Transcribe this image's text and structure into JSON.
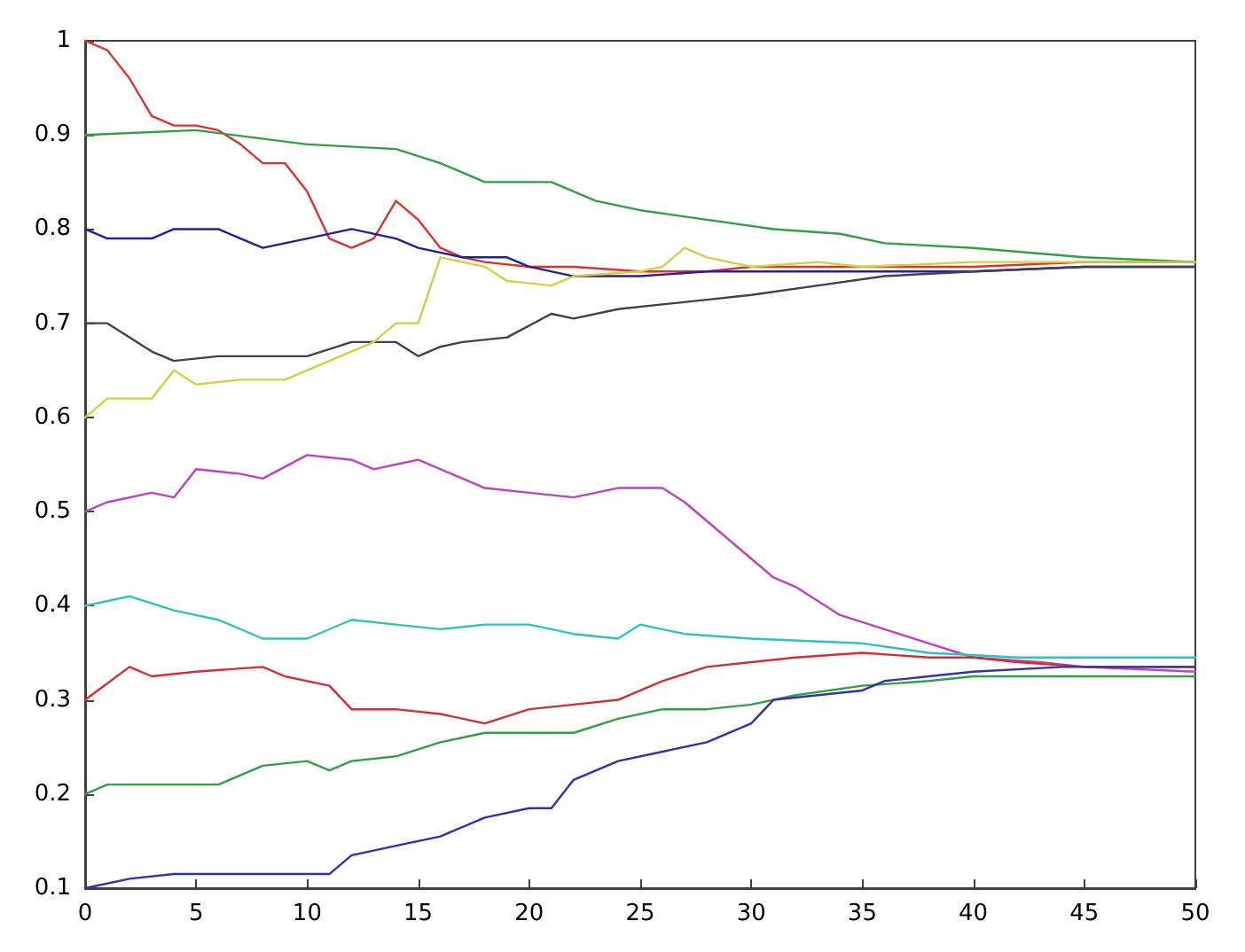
{
  "chart_data": {
    "type": "line",
    "xlim": [
      0,
      50
    ],
    "ylim": [
      0.1,
      1
    ],
    "xticks": [
      0,
      5,
      10,
      15,
      20,
      25,
      30,
      35,
      40,
      45,
      50
    ],
    "yticks": [
      0.1,
      0.2,
      0.3,
      0.4,
      0.5,
      0.6,
      0.7,
      0.8,
      0.9,
      1
    ],
    "grid": false,
    "marker": "none",
    "series": [
      {
        "color": "#e03030",
        "x": [
          0,
          1,
          2,
          3,
          4,
          5,
          6,
          7,
          8,
          9,
          10,
          11,
          12,
          13,
          14,
          15,
          16,
          17,
          18,
          20,
          22,
          25,
          28,
          30,
          35,
          40,
          45,
          50
        ],
        "values": [
          1.0,
          0.99,
          0.96,
          0.92,
          0.91,
          0.91,
          0.905,
          0.89,
          0.87,
          0.87,
          0.84,
          0.79,
          0.78,
          0.79,
          0.83,
          0.81,
          0.78,
          0.77,
          0.765,
          0.76,
          0.76,
          0.755,
          0.755,
          0.76,
          0.76,
          0.76,
          0.765,
          0.765
        ]
      },
      {
        "color": "#30a040",
        "x": [
          0,
          5,
          10,
          14,
          16,
          18,
          21,
          23,
          25,
          28,
          31,
          34,
          36,
          40,
          45,
          50
        ],
        "values": [
          0.9,
          0.905,
          0.89,
          0.885,
          0.87,
          0.85,
          0.85,
          0.83,
          0.82,
          0.81,
          0.8,
          0.795,
          0.785,
          0.78,
          0.77,
          0.765
        ]
      },
      {
        "color": "#2020a0",
        "x": [
          0,
          1,
          3,
          4,
          6,
          7,
          8,
          10,
          12,
          14,
          15,
          17,
          19,
          20,
          22,
          25,
          28,
          30,
          35,
          40,
          45,
          50
        ],
        "values": [
          0.8,
          0.79,
          0.79,
          0.8,
          0.8,
          0.79,
          0.78,
          0.79,
          0.8,
          0.79,
          0.78,
          0.77,
          0.77,
          0.76,
          0.75,
          0.75,
          0.755,
          0.755,
          0.755,
          0.755,
          0.76,
          0.76
        ]
      },
      {
        "color": "#404050",
        "x": [
          0,
          1,
          3,
          4,
          6,
          10,
          12,
          14,
          15,
          16,
          17,
          19,
          21,
          22,
          24,
          26,
          28,
          30,
          33,
          36,
          40,
          45,
          50
        ],
        "values": [
          0.7,
          0.7,
          0.67,
          0.66,
          0.665,
          0.665,
          0.68,
          0.68,
          0.665,
          0.675,
          0.68,
          0.685,
          0.71,
          0.705,
          0.715,
          0.72,
          0.725,
          0.73,
          0.74,
          0.75,
          0.755,
          0.76,
          0.76
        ]
      },
      {
        "color": "#d0d040",
        "x": [
          0,
          1,
          3,
          4,
          5,
          7,
          9,
          11,
          13,
          14,
          15,
          16,
          18,
          19,
          21,
          22,
          25,
          26,
          27,
          28,
          30,
          33,
          35,
          40,
          45,
          50
        ],
        "values": [
          0.6,
          0.62,
          0.62,
          0.65,
          0.635,
          0.64,
          0.64,
          0.66,
          0.68,
          0.7,
          0.7,
          0.77,
          0.76,
          0.745,
          0.74,
          0.75,
          0.755,
          0.76,
          0.78,
          0.77,
          0.76,
          0.765,
          0.76,
          0.765,
          0.765,
          0.765
        ]
      },
      {
        "color": "#c040c0",
        "x": [
          0,
          1,
          3,
          4,
          5,
          7,
          8,
          10,
          12,
          13,
          14,
          15,
          17,
          18,
          20,
          22,
          24,
          26,
          27,
          30,
          31,
          32,
          34,
          36,
          38,
          40,
          43,
          45,
          50
        ],
        "values": [
          0.5,
          0.51,
          0.52,
          0.515,
          0.545,
          0.54,
          0.535,
          0.56,
          0.555,
          0.545,
          0.55,
          0.555,
          0.535,
          0.525,
          0.52,
          0.515,
          0.525,
          0.525,
          0.51,
          0.45,
          0.43,
          0.42,
          0.39,
          0.375,
          0.36,
          0.345,
          0.34,
          0.335,
          0.33
        ]
      },
      {
        "color": "#30c0c0",
        "x": [
          0,
          2,
          4,
          6,
          8,
          10,
          12,
          14,
          16,
          18,
          20,
          22,
          24,
          25,
          27,
          30,
          35,
          38,
          42,
          45,
          50
        ],
        "values": [
          0.4,
          0.41,
          0.395,
          0.385,
          0.365,
          0.365,
          0.385,
          0.38,
          0.375,
          0.38,
          0.38,
          0.37,
          0.365,
          0.38,
          0.37,
          0.365,
          0.36,
          0.35,
          0.345,
          0.345,
          0.345
        ]
      },
      {
        "color": "#d03030",
        "x": [
          0,
          2,
          3,
          5,
          8,
          9,
          11,
          12,
          14,
          16,
          18,
          20,
          22,
          24,
          26,
          28,
          30,
          32,
          35,
          38,
          40,
          42,
          45,
          50
        ],
        "values": [
          0.3,
          0.335,
          0.325,
          0.33,
          0.335,
          0.325,
          0.315,
          0.29,
          0.29,
          0.285,
          0.275,
          0.29,
          0.295,
          0.3,
          0.32,
          0.335,
          0.34,
          0.345,
          0.35,
          0.345,
          0.345,
          0.34,
          0.335,
          0.335
        ]
      },
      {
        "color": "#30a040",
        "x": [
          0,
          1,
          6,
          8,
          10,
          11,
          12,
          14,
          16,
          18,
          20,
          22,
          24,
          26,
          28,
          30,
          32,
          35,
          38,
          40,
          45,
          50
        ],
        "values": [
          0.2,
          0.21,
          0.21,
          0.23,
          0.235,
          0.225,
          0.235,
          0.24,
          0.255,
          0.265,
          0.265,
          0.265,
          0.28,
          0.29,
          0.29,
          0.295,
          0.305,
          0.315,
          0.32,
          0.325,
          0.325,
          0.325
        ]
      },
      {
        "color": "#3030b0",
        "x": [
          0,
          2,
          4,
          6,
          10,
          11,
          12,
          14,
          16,
          18,
          20,
          21,
          22,
          24,
          26,
          28,
          30,
          31,
          33,
          35,
          36,
          38,
          40,
          44,
          50
        ],
        "values": [
          0.1,
          0.11,
          0.115,
          0.115,
          0.115,
          0.115,
          0.135,
          0.145,
          0.155,
          0.175,
          0.185,
          0.185,
          0.215,
          0.235,
          0.245,
          0.255,
          0.275,
          0.3,
          0.305,
          0.31,
          0.32,
          0.325,
          0.33,
          0.335,
          0.335
        ]
      }
    ]
  }
}
